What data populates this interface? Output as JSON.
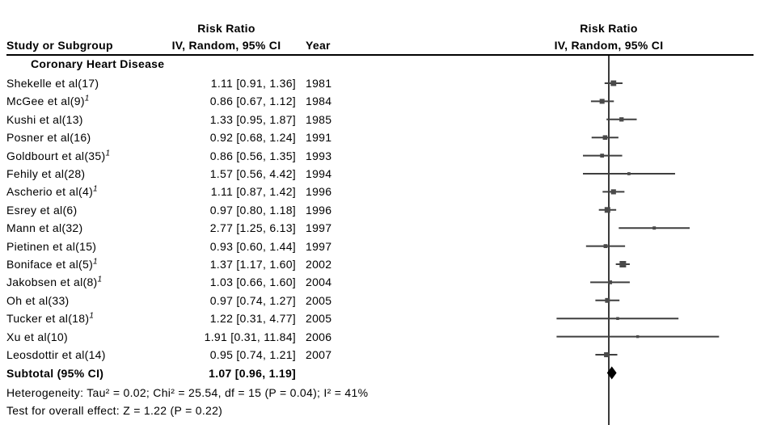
{
  "header": {
    "study_col_title": "Study or Subgroup",
    "left_effect_col_title_line1": "Risk Ratio",
    "left_effect_col_title_line2": "IV, Random, 95% CI",
    "year_col_title": "Year",
    "right_plot_title_line1": "Risk Ratio",
    "right_plot_title_line2": "IV, Random, 95% CI"
  },
  "subgroup_label": "Coronary Heart Disease",
  "chart_data": {
    "type": "forest",
    "scale": "log10",
    "null_value": 1.0,
    "effect_measure": "Risk Ratio",
    "model": "IV, Random, 95% CI",
    "studies": [
      {
        "study": "Shekelle et al(17)",
        "footnote": "",
        "rr": 1.11,
        "ci_low": 0.91,
        "ci_high": 1.36,
        "effect_label": "1.11 [0.91, 1.36]",
        "year": "1981"
      },
      {
        "study": "McGee et al(9)",
        "footnote": "1",
        "rr": 0.86,
        "ci_low": 0.67,
        "ci_high": 1.12,
        "effect_label": "0.86 [0.67, 1.12]",
        "year": "1984"
      },
      {
        "study": "Kushi et al(13)",
        "footnote": "",
        "rr": 1.33,
        "ci_low": 0.95,
        "ci_high": 1.87,
        "effect_label": "1.33 [0.95, 1.87]",
        "year": "1985"
      },
      {
        "study": "Posner et al(16)",
        "footnote": "",
        "rr": 0.92,
        "ci_low": 0.68,
        "ci_high": 1.24,
        "effect_label": "0.92 [0.68, 1.24]",
        "year": "1991"
      },
      {
        "study": "Goldbourt et al(35)",
        "footnote": "1",
        "rr": 0.86,
        "ci_low": 0.56,
        "ci_high": 1.35,
        "effect_label": "0.86 [0.56, 1.35]",
        "year": "1993"
      },
      {
        "study": "Fehily et al(28)",
        "footnote": "",
        "rr": 1.57,
        "ci_low": 0.56,
        "ci_high": 4.42,
        "effect_label": "1.57 [0.56, 4.42]",
        "year": "1994"
      },
      {
        "study": "Ascherio et al(4)",
        "footnote": "1",
        "rr": 1.11,
        "ci_low": 0.87,
        "ci_high": 1.42,
        "effect_label": "1.11 [0.87, 1.42]",
        "year": "1996"
      },
      {
        "study": "Esrey et al(6)",
        "footnote": "",
        "rr": 0.97,
        "ci_low": 0.8,
        "ci_high": 1.18,
        "effect_label": "0.97 [0.80, 1.18]",
        "year": "1996"
      },
      {
        "study": "Mann et al(32)",
        "footnote": "",
        "rr": 2.77,
        "ci_low": 1.25,
        "ci_high": 6.13,
        "effect_label": "2.77 [1.25, 6.13]",
        "year": "1997"
      },
      {
        "study": "Pietinen et al(15)",
        "footnote": "",
        "rr": 0.93,
        "ci_low": 0.6,
        "ci_high": 1.44,
        "effect_label": "0.93 [0.60, 1.44]",
        "year": "1997"
      },
      {
        "study": "Boniface et al(5)",
        "footnote": "1",
        "rr": 1.37,
        "ci_low": 1.17,
        "ci_high": 1.6,
        "effect_label": "1.37 [1.17, 1.60]",
        "year": "2002"
      },
      {
        "study": "Jakobsen et al(8)",
        "footnote": "1",
        "rr": 1.03,
        "ci_low": 0.66,
        "ci_high": 1.6,
        "effect_label": "1.03 [0.66, 1.60]",
        "year": "2004"
      },
      {
        "study": "Oh et al(33)",
        "footnote": "",
        "rr": 0.97,
        "ci_low": 0.74,
        "ci_high": 1.27,
        "effect_label": "0.97 [0.74, 1.27]",
        "year": "2005"
      },
      {
        "study": "Tucker et al(18)",
        "footnote": "1",
        "rr": 1.22,
        "ci_low": 0.31,
        "ci_high": 4.77,
        "effect_label": "1.22 [0.31, 4.77]",
        "year": "2005"
      },
      {
        "study": "Xu et al(10)",
        "footnote": "",
        "rr": 1.91,
        "ci_low": 0.31,
        "ci_high": 11.84,
        "effect_label": "1.91 [0.31, 11.84]",
        "year": "2006"
      },
      {
        "study": "Leosdottir et al(14)",
        "footnote": "",
        "rr": 0.95,
        "ci_low": 0.74,
        "ci_high": 1.21,
        "effect_label": "0.95 [0.74, 1.21]",
        "year": "2007"
      }
    ],
    "subtotal": {
      "label": "Subtotal (95% CI)",
      "rr": 1.07,
      "ci_low": 0.96,
      "ci_high": 1.19,
      "effect_label": "1.07 [0.96, 1.19]"
    },
    "colors": {
      "ci_line": "#3f3f3f",
      "marker": "#4a4a4a",
      "diamond": "#000000",
      "null_line": "#3a3a3a",
      "rule": "#000000"
    }
  },
  "footer": {
    "heterogeneity": "Heterogeneity: Tau² = 0.02; Chi² = 25.54, df = 15 (P = 0.04); I² = 41%",
    "overall_effect": "Test for overall effect: Z = 1.22 (P = 0.22)"
  }
}
